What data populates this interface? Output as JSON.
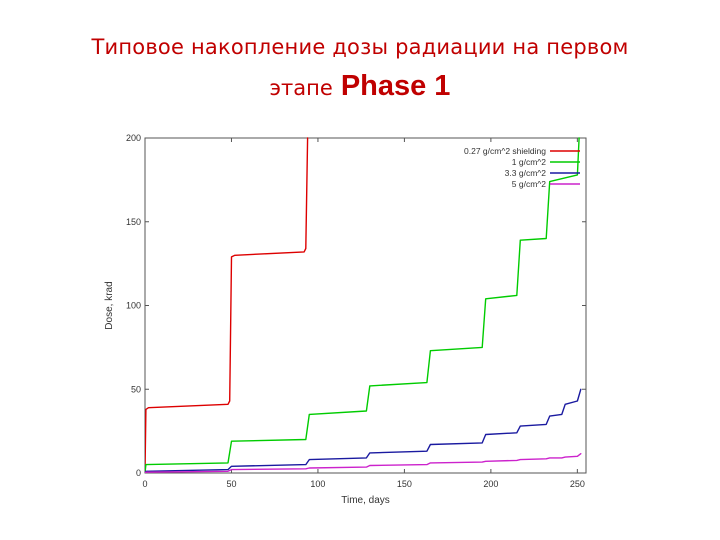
{
  "slide": {
    "title_line1": "Типовое накопление дозы радиации на первом",
    "title_line2_ru": "этапе",
    "title_line2_en": "Phase 1",
    "title_color": "#c00000"
  },
  "chart_data": {
    "type": "line",
    "xlabel": "Time, days",
    "ylabel": "Dose, krad",
    "xlim": [
      0,
      255
    ],
    "ylim": [
      0,
      200
    ],
    "x_ticks": [
      0,
      50,
      100,
      150,
      200,
      250
    ],
    "y_ticks": [
      0,
      50,
      100,
      150,
      200
    ],
    "grid": false,
    "legend_position": "top-right",
    "series": [
      {
        "name": "0.27 g/cm^2 shielding",
        "color": "#dd0000",
        "points": [
          [
            0,
            0
          ],
          [
            0.5,
            38
          ],
          [
            2,
            39
          ],
          [
            48,
            41
          ],
          [
            49,
            43
          ],
          [
            50,
            129
          ],
          [
            52,
            130
          ],
          [
            92,
            132
          ],
          [
            93,
            134
          ],
          [
            94,
            200
          ]
        ]
      },
      {
        "name": "1 g/cm^2",
        "color": "#00cc00",
        "points": [
          [
            0,
            0
          ],
          [
            0.5,
            5
          ],
          [
            48,
            6
          ],
          [
            50,
            19
          ],
          [
            93,
            20
          ],
          [
            95,
            35
          ],
          [
            128,
            37
          ],
          [
            130,
            52
          ],
          [
            163,
            54
          ],
          [
            165,
            73
          ],
          [
            195,
            75
          ],
          [
            197,
            104
          ],
          [
            215,
            106
          ],
          [
            217,
            139
          ],
          [
            232,
            140
          ],
          [
            234,
            174
          ],
          [
            250,
            178
          ],
          [
            251,
            200
          ]
        ]
      },
      {
        "name": "3.3 g/cm^2",
        "color": "#1a1aa0",
        "points": [
          [
            0,
            0
          ],
          [
            0.5,
            1
          ],
          [
            48,
            2
          ],
          [
            50,
            4
          ],
          [
            93,
            5
          ],
          [
            95,
            8
          ],
          [
            128,
            9
          ],
          [
            130,
            12
          ],
          [
            163,
            13
          ],
          [
            165,
            17
          ],
          [
            195,
            18
          ],
          [
            197,
            23
          ],
          [
            215,
            24
          ],
          [
            217,
            28
          ],
          [
            232,
            29
          ],
          [
            234,
            34
          ],
          [
            241,
            35
          ],
          [
            243,
            41
          ],
          [
            250,
            43
          ],
          [
            252,
            50
          ]
        ]
      },
      {
        "name": "5 g/cm^2",
        "color": "#cc22cc",
        "points": [
          [
            0,
            0
          ],
          [
            0.5,
            0.5
          ],
          [
            48,
            1
          ],
          [
            50,
            2
          ],
          [
            93,
            2.5
          ],
          [
            95,
            3
          ],
          [
            128,
            3.5
          ],
          [
            130,
            4.5
          ],
          [
            163,
            5
          ],
          [
            165,
            6
          ],
          [
            195,
            6.5
          ],
          [
            197,
            7
          ],
          [
            215,
            7.5
          ],
          [
            217,
            8
          ],
          [
            232,
            8.5
          ],
          [
            234,
            9
          ],
          [
            241,
            9
          ],
          [
            243,
            9.5
          ],
          [
            250,
            10
          ],
          [
            252,
            11.5
          ]
        ]
      }
    ]
  }
}
